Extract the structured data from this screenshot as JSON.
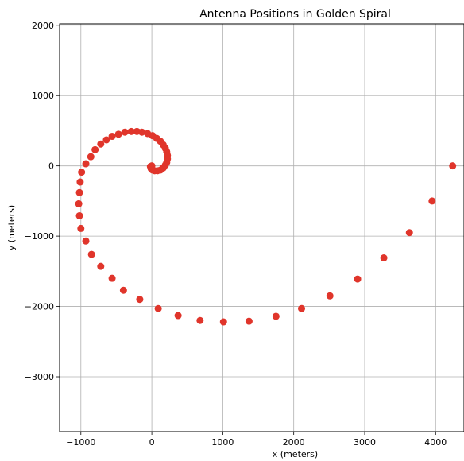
{
  "chart_data": {
    "type": "scatter",
    "title": "Antenna Positions in Golden Spiral",
    "xlabel": "x (meters)",
    "ylabel": "y (meters)",
    "xlim": [
      -1300,
      4400
    ],
    "ylim": [
      -3780,
      2020
    ],
    "xticks": [
      -1000,
      0,
      1000,
      2000,
      3000,
      4000
    ],
    "yticks": [
      -3000,
      -2000,
      -1000,
      0,
      1000,
      2000
    ],
    "xtick_labels": [
      "−1000",
      "0",
      "1000",
      "2000",
      "3000",
      "4000"
    ],
    "ytick_labels": [
      "−3000",
      "−2000",
      "−1000",
      "0",
      "1000",
      "2000"
    ],
    "grid": true,
    "marker_color": "#e0352b",
    "points": [
      [
        4240,
        0
      ],
      [
        3950,
        -500
      ],
      [
        3630,
        -950
      ],
      [
        3270,
        -1310
      ],
      [
        2900,
        -1610
      ],
      [
        2510,
        -1850
      ],
      [
        2110,
        -2030
      ],
      [
        1750,
        -2140
      ],
      [
        1370,
        -2210
      ],
      [
        1010,
        -2220
      ],
      [
        680,
        -2200
      ],
      [
        370,
        -2130
      ],
      [
        90,
        -2030
      ],
      [
        -170,
        -1900
      ],
      [
        -400,
        -1770
      ],
      [
        -560,
        -1600
      ],
      [
        -720,
        -1430
      ],
      [
        -850,
        -1260
      ],
      [
        -930,
        -1070
      ],
      [
        -1000,
        -890
      ],
      [
        -1020,
        -710
      ],
      [
        -1030,
        -540
      ],
      [
        -1020,
        -380
      ],
      [
        -1010,
        -230
      ],
      [
        -990,
        -90
      ],
      [
        -930,
        30
      ],
      [
        -860,
        130
      ],
      [
        -800,
        230
      ],
      [
        -720,
        310
      ],
      [
        -640,
        370
      ],
      [
        -560,
        420
      ],
      [
        -470,
        450
      ],
      [
        -380,
        480
      ],
      [
        -290,
        490
      ],
      [
        -210,
        490
      ],
      [
        -140,
        480
      ],
      [
        -60,
        460
      ],
      [
        10,
        430
      ],
      [
        70,
        390
      ],
      [
        120,
        350
      ],
      [
        160,
        300
      ],
      [
        190,
        250
      ],
      [
        210,
        200
      ],
      [
        220,
        150
      ],
      [
        220,
        100
      ],
      [
        210,
        50
      ],
      [
        190,
        10
      ],
      [
        160,
        -30
      ],
      [
        120,
        -60
      ],
      [
        80,
        -70
      ],
      [
        40,
        -70
      ],
      [
        10,
        -60
      ],
      [
        -10,
        -40
      ],
      [
        -20,
        -10
      ],
      [
        0,
        0
      ]
    ]
  }
}
